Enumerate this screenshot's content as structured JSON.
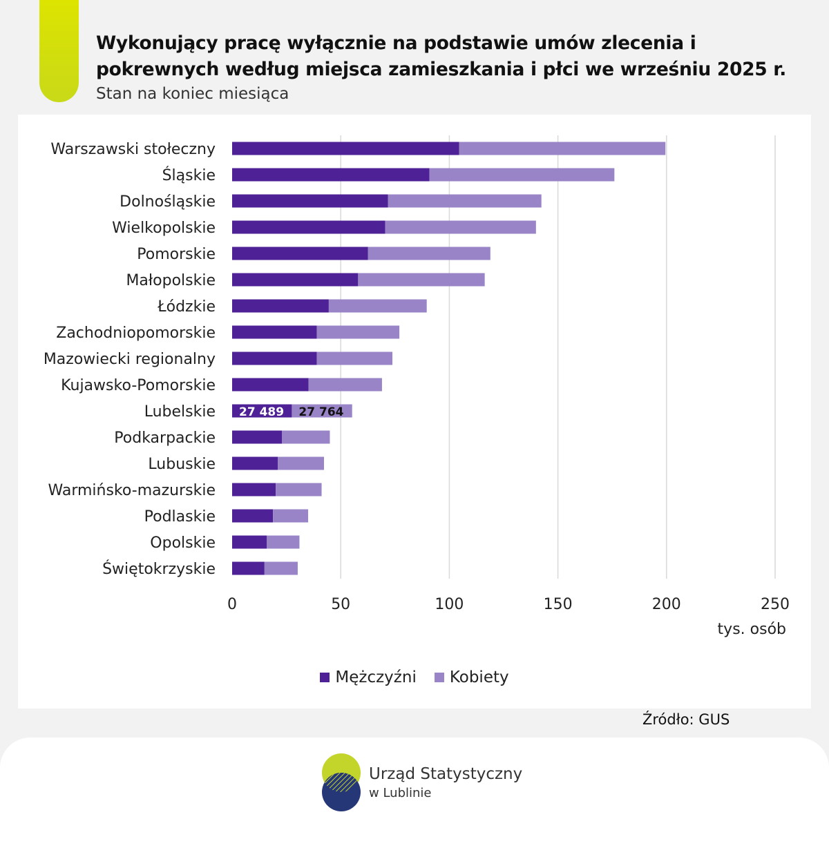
{
  "header": {
    "title": "Wykonujący pracę wyłącznie na podstawie umów zlecenia i pokrewnych według miejsca zamieszkania i płci we wrześniu 2025 r.",
    "subtitle": "Stan na koniec miesiąca"
  },
  "colors": {
    "accent": "#c8d918",
    "men": "#4f2196",
    "women": "#9a84c8",
    "grid": "#d9d9d9",
    "logo_green": "#c3d42a",
    "logo_navy": "#263778"
  },
  "chart_data": {
    "type": "bar",
    "orientation": "horizontal",
    "stacked": true,
    "title": "",
    "xlabel": "tys. osób",
    "ylabel": "",
    "xlim": [
      0,
      250
    ],
    "xticks": [
      0,
      50,
      100,
      150,
      200,
      250
    ],
    "grid": true,
    "legend_position": "bottom",
    "categories": [
      "Warszawski stołeczny",
      "Śląskie",
      "Dolnośląskie",
      "Wielkopolskie",
      "Pomorskie",
      "Małopolskie",
      "Łódzkie",
      "Zachodniopomorskie",
      "Mazowiecki regionalny",
      "Kujawsko-Pomorskie",
      "Lubelskie",
      "Podkarpackie",
      "Lubuskie",
      "Warmińsko-mazurskie",
      "Podlaskie",
      "Opolskie",
      "Świętokrzyskie"
    ],
    "series": [
      {
        "name": "Mężczyźni",
        "values": [
          104.5,
          90.8,
          71.8,
          70.5,
          62.5,
          58.0,
          44.5,
          39.0,
          39.0,
          35.2,
          27.489,
          22.9,
          21.0,
          20.1,
          18.8,
          16.0,
          14.9
        ]
      },
      {
        "name": "Kobiety",
        "values": [
          95.0,
          85.2,
          70.6,
          69.4,
          56.4,
          58.3,
          45.1,
          38.0,
          34.8,
          33.8,
          27.764,
          22.1,
          21.3,
          21.1,
          16.2,
          15.0,
          15.3
        ]
      }
    ],
    "data_labels": [
      {
        "category": "Lubelskie",
        "series": "Mężczyźni",
        "text": "27 489"
      },
      {
        "category": "Lubelskie",
        "series": "Kobiety",
        "text": "27 764"
      }
    ]
  },
  "source": "Źródło: GUS",
  "footer": {
    "org_line1": "Urząd Statystyczny",
    "org_line2": "w Lublinie"
  }
}
